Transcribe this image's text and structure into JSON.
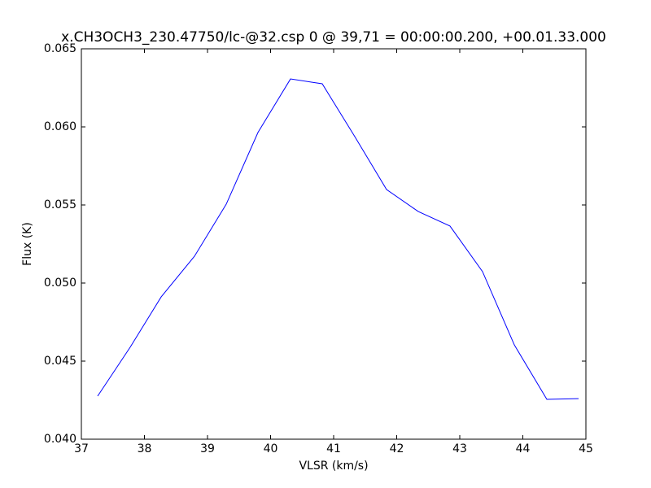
{
  "chart_data": {
    "type": "line",
    "title": "x.CH3OCH3_230.47750/lc-@32.csp 0 @ 39,71 = 00:00:00.200, +00.01.33.000",
    "x_label": "VLSR (km/s)",
    "y_label": "Flux (K)",
    "x": [
      37.258,
      37.774,
      38.265,
      38.794,
      39.297,
      39.8,
      40.316,
      40.819,
      41.335,
      41.839,
      42.342,
      42.845,
      43.361,
      43.865,
      44.381,
      44.884
    ],
    "series": [
      {
        "color": "#0000ff",
        "values": [
          0.04276,
          0.04589,
          0.04911,
          0.05172,
          0.05505,
          0.05964,
          0.06307,
          0.06276,
          0.05938,
          0.05599,
          0.05458,
          0.05365,
          0.05073,
          0.04604,
          0.04255,
          0.0426
        ]
      }
    ],
    "xlim": [
      37,
      45
    ],
    "xticks": [
      37,
      38,
      39,
      40,
      41,
      42,
      43,
      44,
      45
    ],
    "ylim": [
      0.04,
      0.065
    ],
    "yticks": [
      {
        "value": 0.04,
        "label": "0.040"
      },
      0.045,
      {
        "value": 0.05,
        "label": "0.050"
      },
      0.055,
      {
        "value": 0.06,
        "label": "0.060"
      },
      0.065
    ]
  }
}
